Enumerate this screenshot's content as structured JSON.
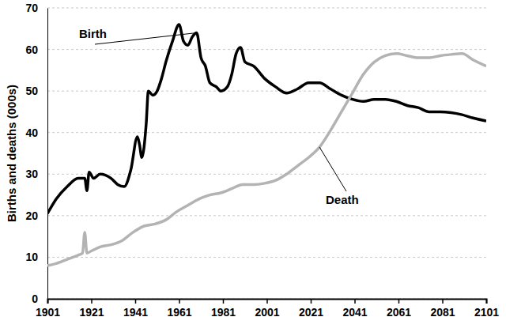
{
  "chart_data": {
    "type": "line",
    "y_label": "Births and deaths (000s)",
    "xlim": [
      1901,
      2101
    ],
    "xticks": [
      1901,
      1921,
      1941,
      1961,
      1981,
      2001,
      2021,
      2041,
      2061,
      2081,
      2101
    ],
    "ylim": [
      0,
      70
    ],
    "yticks": [
      0,
      10,
      20,
      30,
      40,
      50,
      60,
      70
    ],
    "grid": true,
    "series": [
      {
        "name": "Birth",
        "color": "#000000",
        "x": [
          1901,
          1905,
          1910,
          1915,
          1918,
          1919,
          1920,
          1922,
          1925,
          1930,
          1933,
          1936,
          1939,
          1942,
          1943,
          1944,
          1946,
          1947,
          1949,
          1951,
          1953,
          1955,
          1958,
          1961,
          1963,
          1965,
          1967,
          1969,
          1971,
          1973,
          1975,
          1978,
          1980,
          1983,
          1985,
          1987,
          1989,
          1991,
          1995,
          2000,
          2005,
          2010,
          2015,
          2020,
          2025,
          2030,
          2035,
          2040,
          2045,
          2050,
          2055,
          2060,
          2065,
          2070,
          2075,
          2080,
          2085,
          2090,
          2095,
          2101
        ],
        "values": [
          20.5,
          24,
          27,
          29,
          29,
          26,
          30.5,
          29,
          30,
          29,
          27.5,
          27,
          31,
          39,
          37,
          34,
          42,
          50,
          49,
          50,
          53,
          57,
          62,
          66,
          62,
          61,
          63,
          64,
          58,
          56,
          52,
          51,
          50,
          51,
          54,
          59,
          60.5,
          57,
          56,
          53,
          51,
          49.5,
          50.5,
          52,
          52,
          50.5,
          49,
          48,
          47.5,
          48,
          48,
          47.5,
          46.5,
          46,
          45,
          45,
          44.8,
          44.3,
          43.5,
          42.8
        ]
      },
      {
        "name": "Death",
        "color": "#b3b3b3",
        "x": [
          1901,
          1905,
          1910,
          1915,
          1917,
          1918,
          1919,
          1921,
          1925,
          1930,
          1935,
          1940,
          1945,
          1950,
          1955,
          1960,
          1965,
          1970,
          1975,
          1980,
          1985,
          1990,
          1995,
          2000,
          2005,
          2010,
          2015,
          2020,
          2025,
          2030,
          2035,
          2040,
          2045,
          2050,
          2055,
          2060,
          2065,
          2070,
          2075,
          2080,
          2085,
          2090,
          2095,
          2101
        ],
        "values": [
          8,
          8.5,
          9.5,
          10.5,
          11,
          16,
          11,
          11.5,
          12.5,
          13,
          14,
          16,
          17.5,
          18,
          19,
          21,
          22.5,
          24,
          25,
          25.5,
          26.5,
          27.5,
          27.5,
          27.8,
          28.5,
          30,
          32,
          34,
          36.5,
          40.5,
          45,
          49.5,
          54,
          57,
          58.5,
          59,
          58.5,
          58,
          58,
          58.5,
          58.8,
          59,
          57.5,
          56
        ]
      }
    ]
  }
}
